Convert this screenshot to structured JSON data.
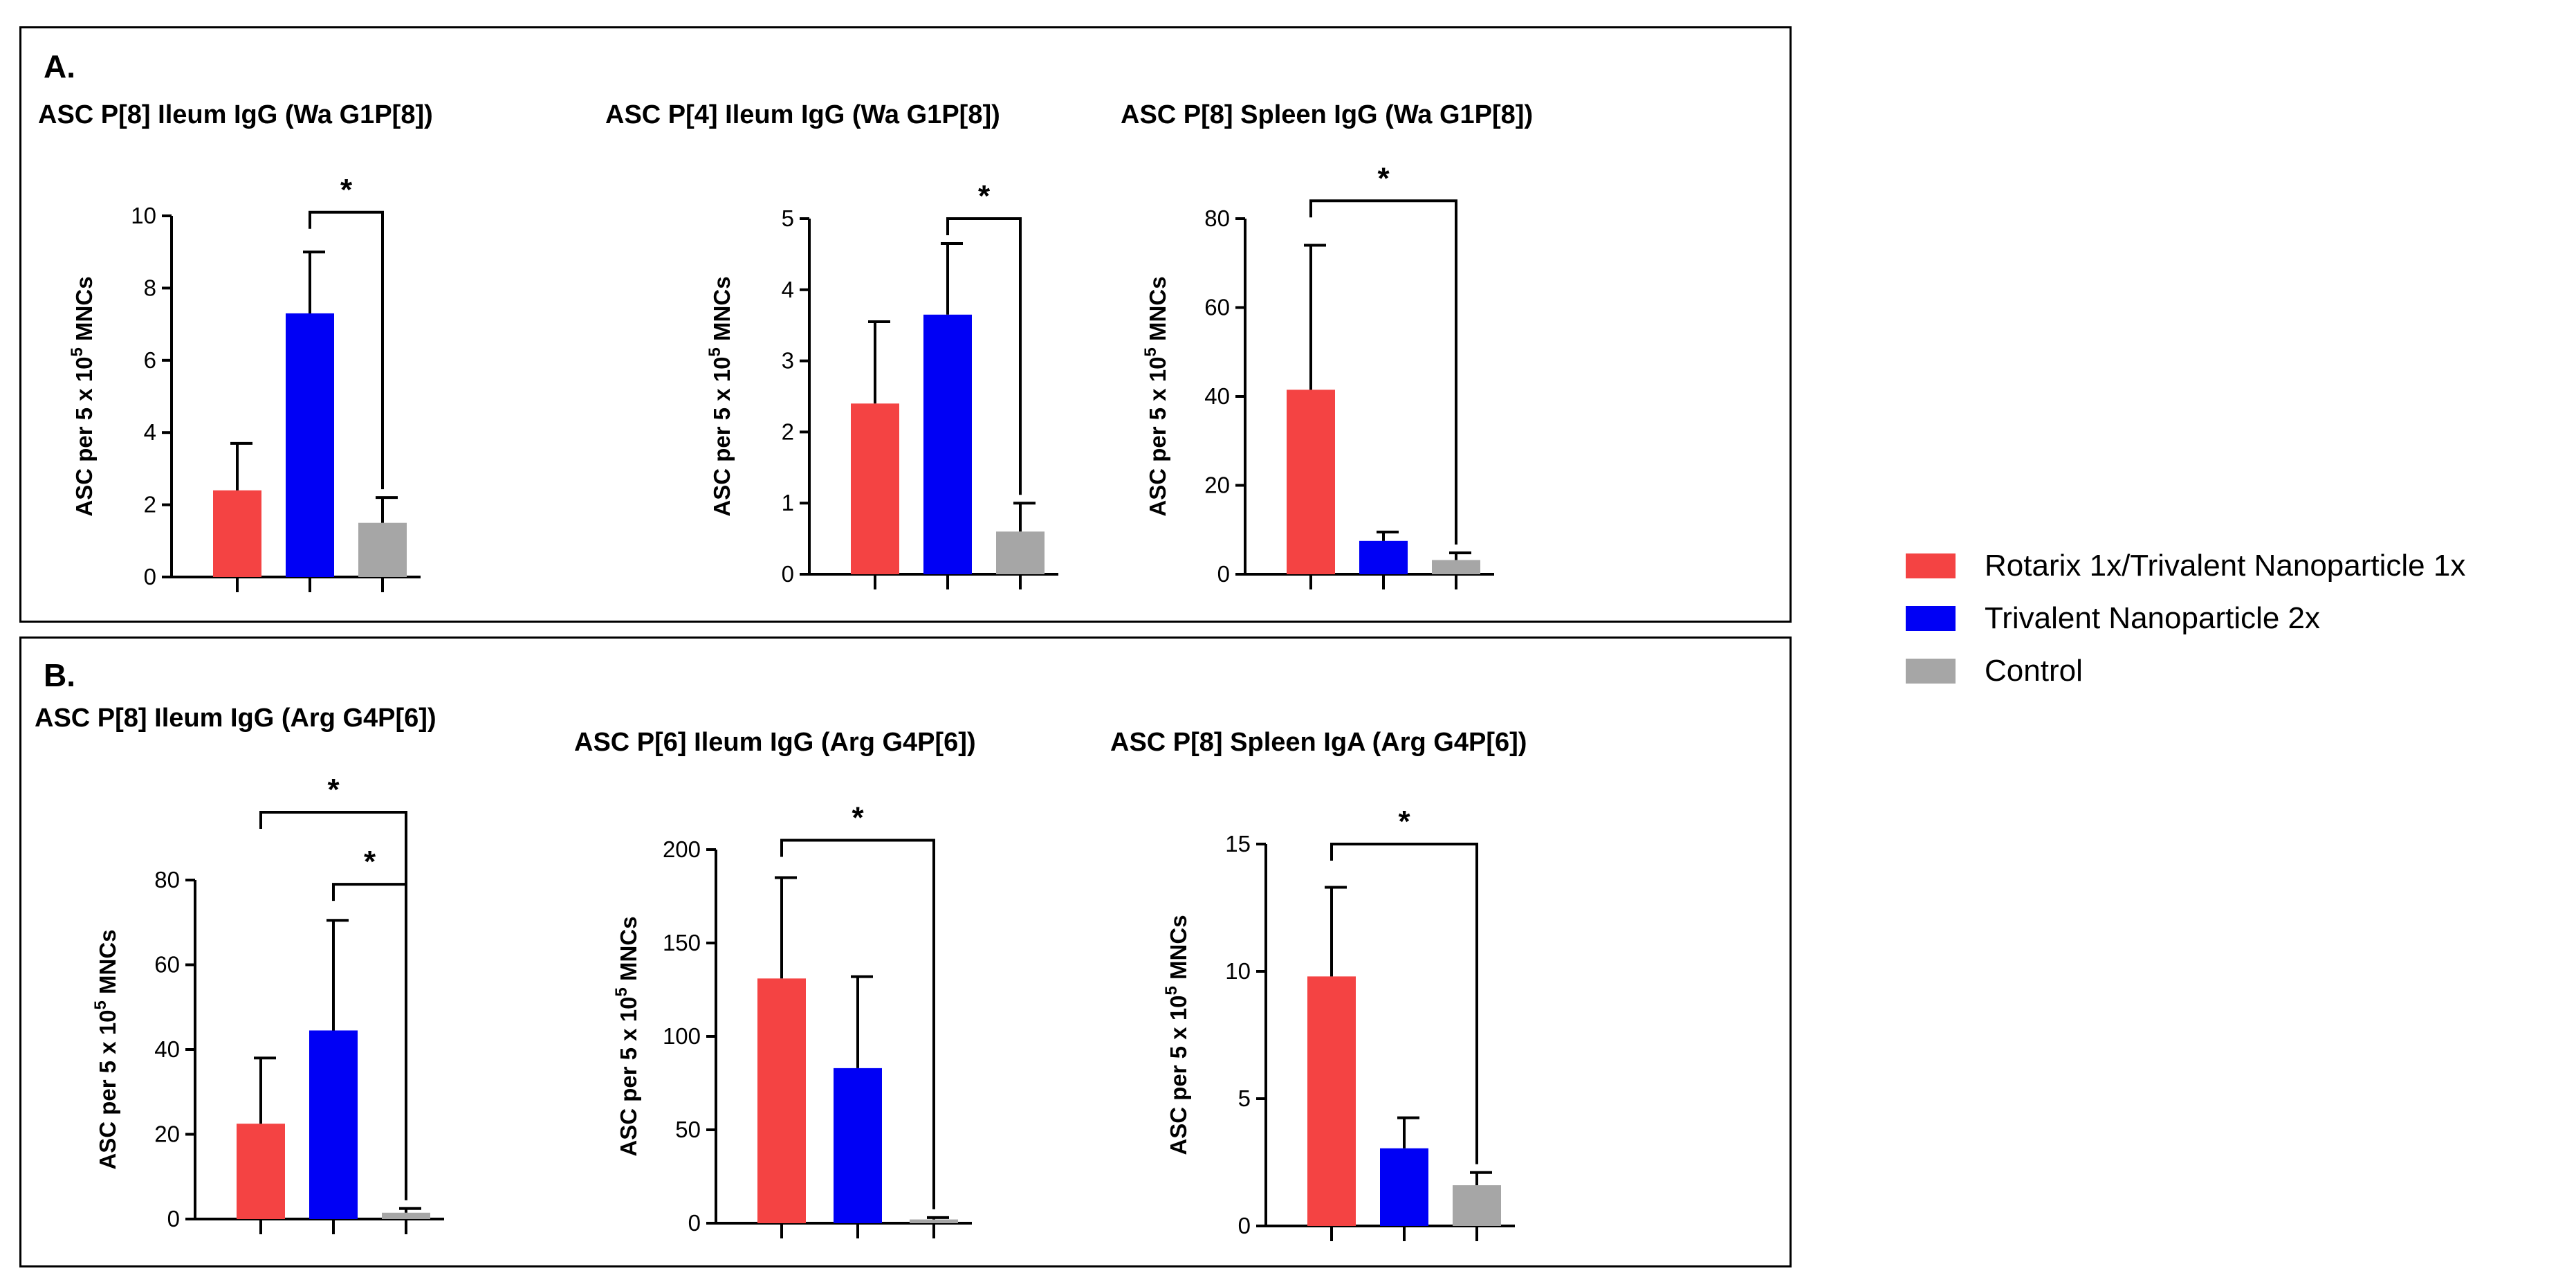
{
  "panels": [
    {
      "label": "A."
    },
    {
      "label": "B."
    }
  ],
  "legend": [
    {
      "label": "Rotarix 1x/Trivalent Nanoparticle 1x",
      "color": "#F44343"
    },
    {
      "label": "Trivalent Nanoparticle 2x",
      "color": "#0000F5"
    },
    {
      "label": "Control",
      "color": "#A6A6A6"
    }
  ],
  "chart_data": [
    {
      "type": "bar",
      "title": "ASC P[8] Ileum IgG (Wa G1P[8])",
      "ylabel": "ASC per 5 x 10^5 MNCs",
      "ylim": [
        0,
        10
      ],
      "yticks": [
        0,
        2,
        4,
        6,
        8,
        10
      ],
      "categories": [
        "Rotarix 1x/Trivalent Nanoparticle 1x",
        "Trivalent Nanoparticle 2x",
        "Control"
      ],
      "values": [
        2.4,
        7.3,
        1.5
      ],
      "errors": [
        1.3,
        1.7,
        0.7
      ],
      "significance": [
        {
          "from": 1,
          "to": 2,
          "label": "*",
          "y": 10.1
        }
      ]
    },
    {
      "type": "bar",
      "title": "ASC P[4] Ileum IgG (Wa G1P[8])",
      "ylabel": "ASC per 5 x 10^5 MNCs",
      "ylim": [
        0,
        5
      ],
      "yticks": [
        0,
        1,
        2,
        3,
        4,
        5
      ],
      "categories": [
        "Rotarix 1x/Trivalent Nanoparticle 1x",
        "Trivalent Nanoparticle 2x",
        "Control"
      ],
      "values": [
        2.4,
        3.65,
        0.6
      ],
      "errors": [
        1.15,
        1.0,
        0.4
      ],
      "significance": [
        {
          "from": 1,
          "to": 2,
          "label": "*",
          "y": 5.0
        }
      ]
    },
    {
      "type": "bar",
      "title": "ASC P[8] Spleen IgG (Wa G1P[8])",
      "ylabel": "ASC per 5 x 10^5 MNCs",
      "ylim": [
        0,
        80
      ],
      "yticks": [
        0,
        20,
        40,
        60,
        80
      ],
      "categories": [
        "Rotarix 1x/Trivalent Nanoparticle 1x",
        "Trivalent Nanoparticle 2x",
        "Control"
      ],
      "values": [
        41.5,
        7.5,
        3.2
      ],
      "errors": [
        32.5,
        2.0,
        1.6
      ],
      "significance": [
        {
          "from": 0,
          "to": 2,
          "label": "*",
          "y": 84
        }
      ]
    },
    {
      "type": "bar",
      "title": "ASC P[8] Ileum IgG (Arg G4P[6])",
      "ylabel": "ASC per 5 x 10^5 MNCs",
      "ylim": [
        0,
        80
      ],
      "yticks": [
        0,
        20,
        40,
        60,
        80
      ],
      "categories": [
        "Rotarix 1x/Trivalent Nanoparticle 1x",
        "Trivalent Nanoparticle 2x",
        "Control"
      ],
      "values": [
        22.5,
        44.5,
        1.5
      ],
      "errors": [
        15.5,
        26.0,
        1.0
      ],
      "significance": [
        {
          "from": 1,
          "to": 2,
          "label": "*",
          "y": 79
        },
        {
          "from": 0,
          "to": 2,
          "label": "*",
          "y": 96
        }
      ]
    },
    {
      "type": "bar",
      "title": "ASC P[6] Ileum IgG (Arg G4P[6])",
      "ylabel": "ASC per 5 x 10^5 MNCs",
      "ylim": [
        0,
        200
      ],
      "yticks": [
        0,
        50,
        100,
        150,
        200
      ],
      "categories": [
        "Rotarix 1x/Trivalent Nanoparticle 1x",
        "Trivalent Nanoparticle 2x",
        "Control"
      ],
      "values": [
        131,
        83,
        2
      ],
      "errors": [
        54,
        49,
        1
      ],
      "significance": [
        {
          "from": 0,
          "to": 2,
          "label": "*",
          "y": 205
        }
      ]
    },
    {
      "type": "bar",
      "title": "ASC P[8] Spleen IgA (Arg G4P[6])",
      "ylabel": "ASC per 5 x 10^5 MNCs",
      "ylim": [
        0,
        15
      ],
      "yticks": [
        0,
        5,
        10,
        15
      ],
      "categories": [
        "Rotarix 1x/Trivalent Nanoparticle 1x",
        "Trivalent Nanoparticle 2x",
        "Control"
      ],
      "values": [
        9.8,
        3.05,
        1.6
      ],
      "errors": [
        3.5,
        1.2,
        0.5
      ],
      "significance": [
        {
          "from": 0,
          "to": 2,
          "label": "*",
          "y": 15.0
        }
      ]
    }
  ]
}
